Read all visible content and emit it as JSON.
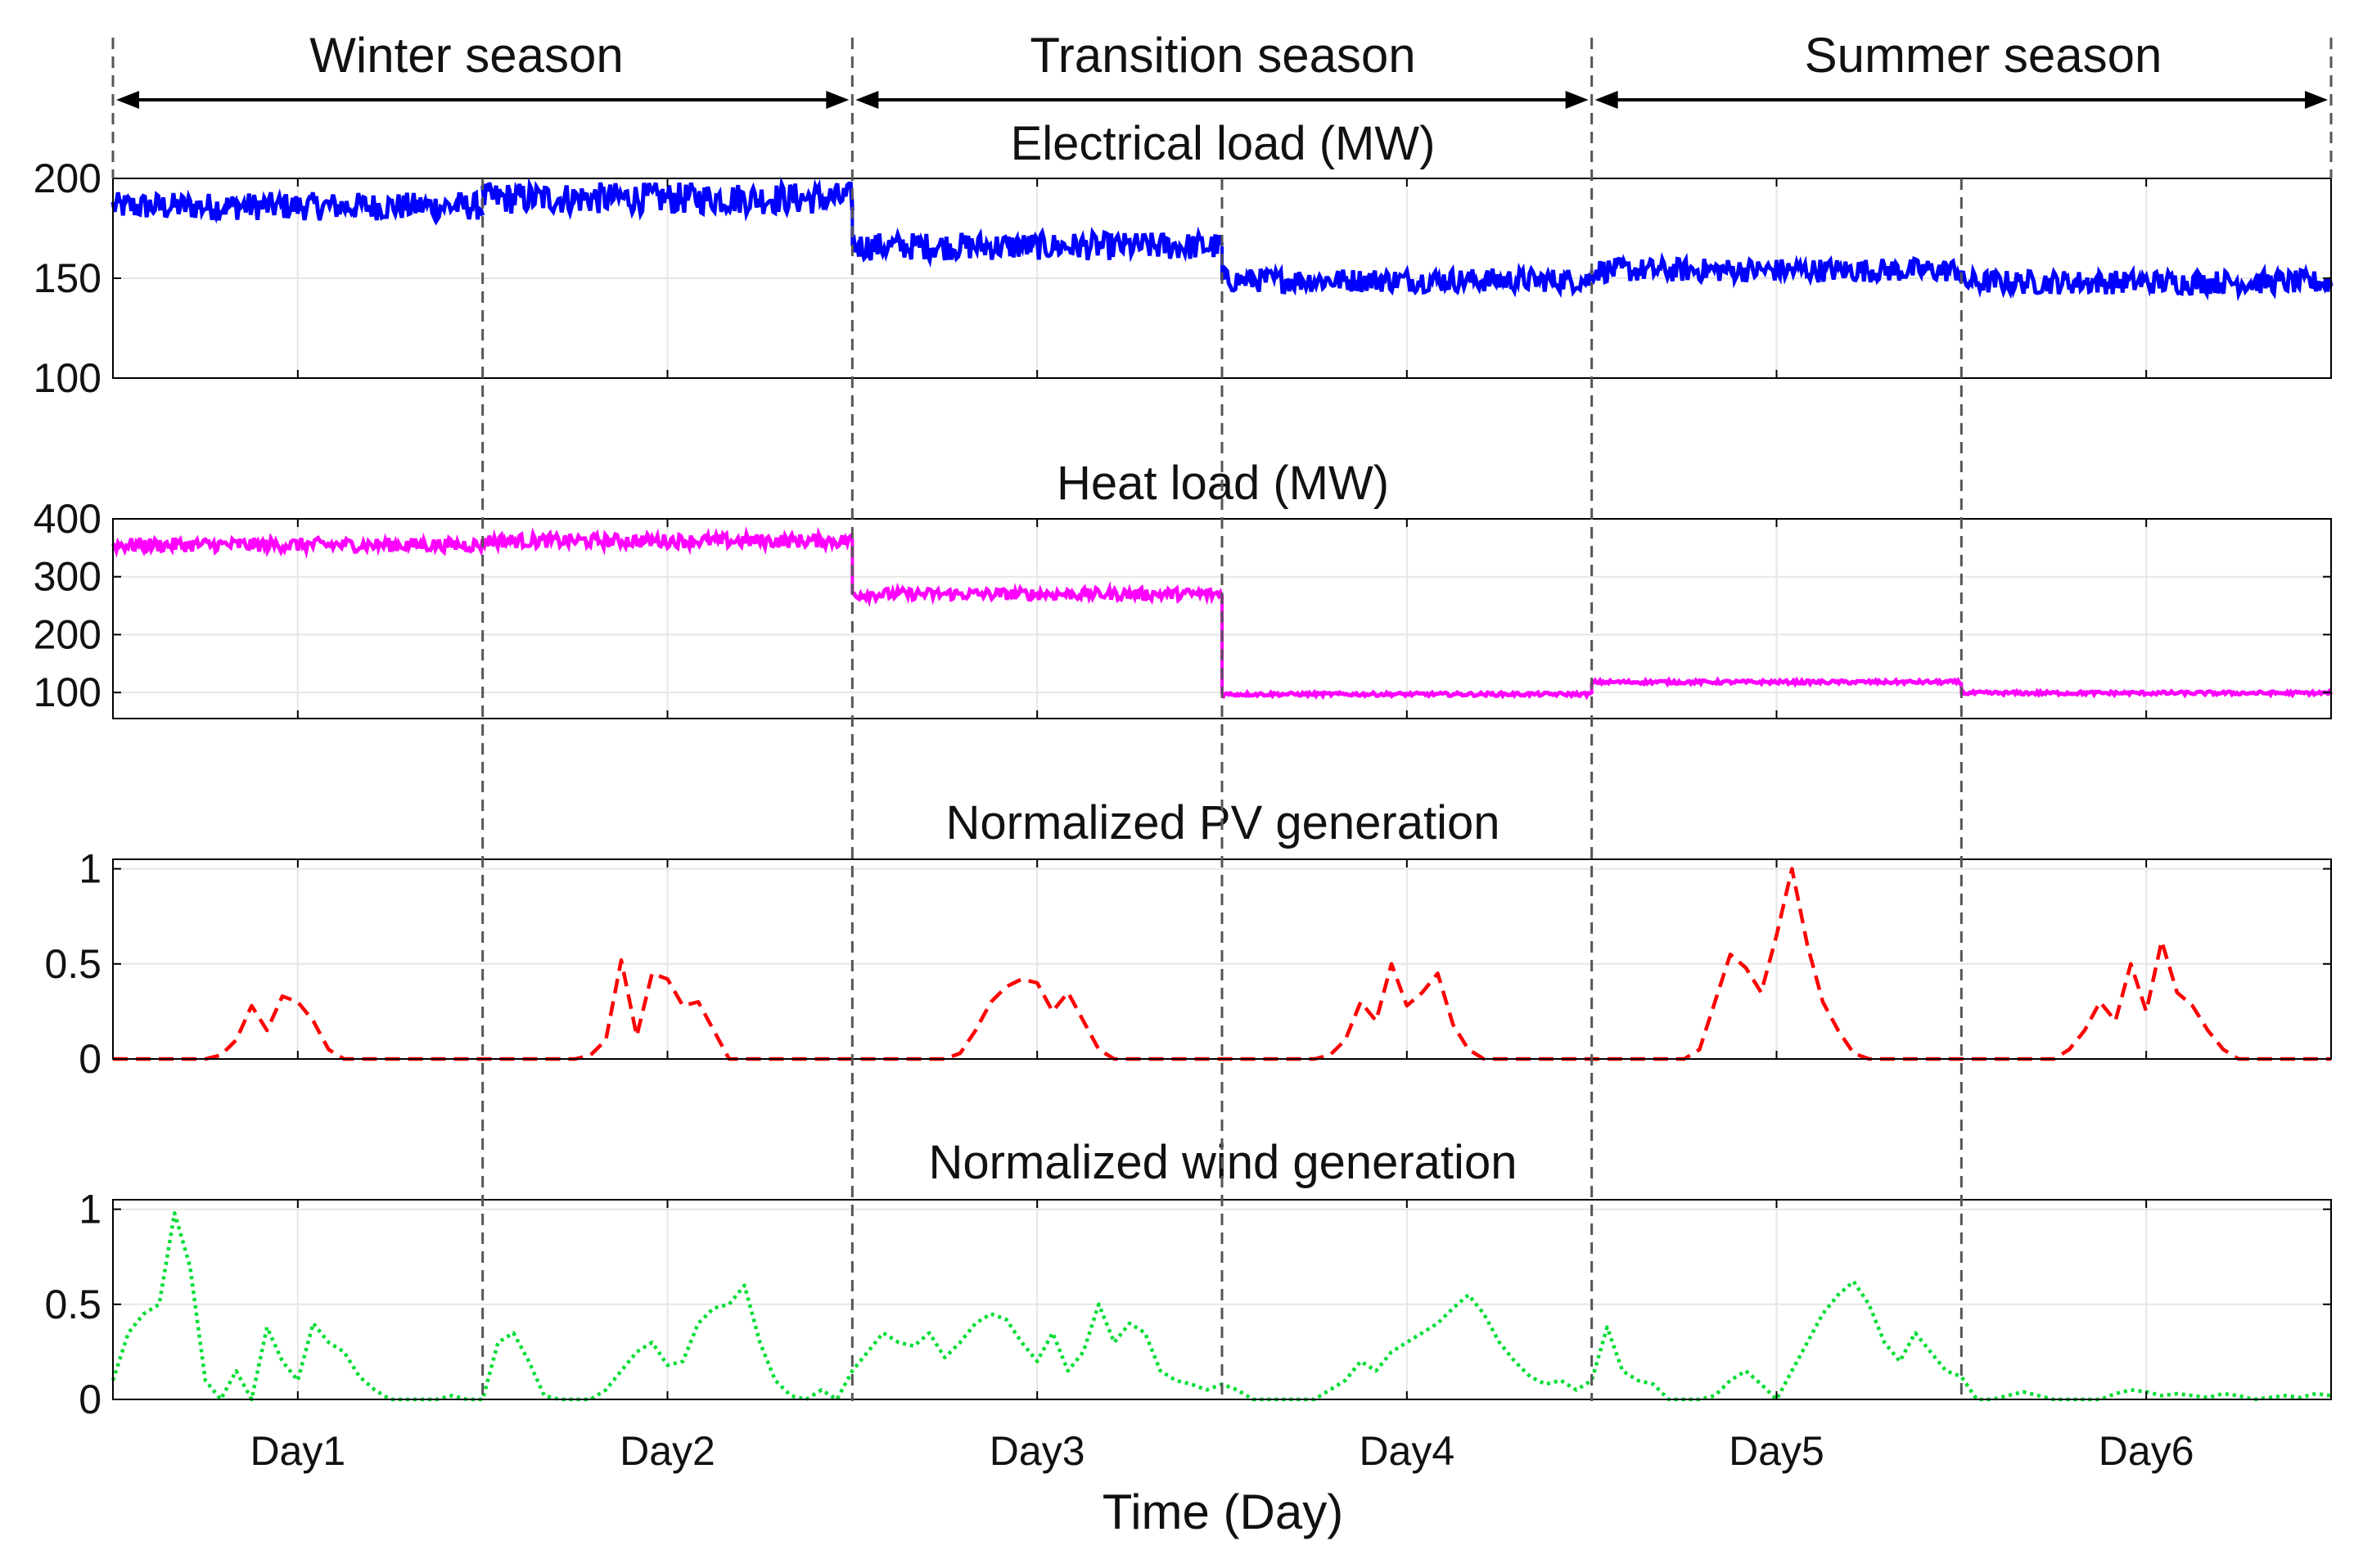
{
  "seasons": [
    {
      "label": "Winter season",
      "start_day": 0,
      "end_day": 2
    },
    {
      "label": "Transition season",
      "start_day": 2,
      "end_day": 4
    },
    {
      "label": "Summer season",
      "start_day": 4,
      "end_day": 6
    }
  ],
  "xaxis": {
    "label": "Time (Day)",
    "tick_labels": [
      "Day1",
      "Day2",
      "Day3",
      "Day4",
      "Day5",
      "Day6"
    ],
    "range_days": [
      0,
      6
    ]
  },
  "colors": {
    "electrical": "#0000ff",
    "heat": "#ff00ff",
    "pv": "#ff0000",
    "wind": "#00dd33",
    "divider": "#555555",
    "grid": "#e6e6e6",
    "axes": "#000000"
  },
  "chart_data": [
    {
      "type": "line",
      "title": "Electrical load (MW)",
      "xlabel": "Time (Day)",
      "ylabel": "",
      "ylim": [
        100,
        200
      ],
      "yticks": [
        100,
        150,
        200
      ],
      "grid": true,
      "line_style": "solid",
      "series": [
        {
          "name": "",
          "x": [
            1,
            2,
            3,
            4,
            5,
            6
          ],
          "values": [
            186,
            190,
            166,
            149,
            154,
            148
          ],
          "noise_band": [
            7,
            8,
            7,
            6,
            6,
            6
          ]
        }
      ]
    },
    {
      "type": "line",
      "title": "Heat load (MW)",
      "xlabel": "Time (Day)",
      "ylabel": "",
      "ylim": [
        55,
        400
      ],
      "yticks": [
        100,
        200,
        300,
        400
      ],
      "grid": true,
      "line_style": "solid",
      "series": [
        {
          "name": "",
          "x": [
            1,
            2,
            3,
            4,
            5,
            6
          ],
          "values": [
            355,
            362,
            270,
            97,
            118,
            99
          ],
          "noise_band": [
            12,
            12,
            10,
            3,
            3,
            3
          ]
        }
      ]
    },
    {
      "type": "line",
      "title": "Normalized PV generation",
      "xlabel": "Time (Day)",
      "ylabel": "",
      "ylim": [
        0,
        1.05
      ],
      "yticks": [
        0,
        0.5,
        1
      ],
      "grid": true,
      "line_style": "dashed",
      "series": [
        {
          "name": "",
          "x_hours": [
            0,
            6,
            7,
            8,
            9,
            10,
            11,
            12,
            13,
            14,
            15,
            16,
            17,
            24,
            30,
            31,
            32,
            33,
            34,
            35,
            36,
            37,
            38,
            39,
            40,
            41,
            48,
            54,
            55,
            56,
            57,
            58,
            59,
            60,
            61,
            62,
            63,
            64,
            65,
            72,
            78,
            79,
            80,
            81,
            82,
            83,
            84,
            85,
            86,
            87,
            88,
            89,
            96,
            102,
            103,
            104,
            105,
            106,
            107,
            108,
            109,
            110,
            111,
            112,
            113,
            114,
            120,
            126,
            127,
            128,
            129,
            130,
            131,
            132,
            133,
            134,
            135,
            136,
            137,
            138,
            144
          ],
          "values": [
            0,
            0,
            0.02,
            0.1,
            0.28,
            0.15,
            0.33,
            0.3,
            0.2,
            0.05,
            0,
            0,
            0,
            0,
            0,
            0.02,
            0.1,
            0.52,
            0.12,
            0.45,
            0.42,
            0.28,
            0.3,
            0.15,
            0,
            0,
            0,
            0,
            0.03,
            0.15,
            0.3,
            0.38,
            0.42,
            0.4,
            0.25,
            0.35,
            0.2,
            0.05,
            0,
            0,
            0,
            0.02,
            0.1,
            0.3,
            0.2,
            0.5,
            0.28,
            0.35,
            0.45,
            0.18,
            0.05,
            0,
            0,
            0,
            0.05,
            0.3,
            0.55,
            0.48,
            0.35,
            0.65,
            1.0,
            0.6,
            0.3,
            0.15,
            0.03,
            0,
            0,
            0,
            0.05,
            0.15,
            0.3,
            0.2,
            0.5,
            0.25,
            0.62,
            0.35,
            0.28,
            0.15,
            0.05,
            0,
            0
          ]
        }
      ]
    },
    {
      "type": "line",
      "title": "Normalized wind generation",
      "xlabel": "Time (Day)",
      "ylabel": "",
      "ylim": [
        0,
        1.05
      ],
      "yticks": [
        0,
        0.5,
        1
      ],
      "grid": true,
      "line_style": "dotted",
      "series": [
        {
          "name": "",
          "x_hours": [
            0,
            1,
            2,
            3,
            4,
            5,
            6,
            7,
            8,
            9,
            10,
            11,
            12,
            13,
            14,
            15,
            16,
            17,
            18,
            19,
            20,
            21,
            22,
            23,
            24,
            25,
            26,
            27,
            28,
            29,
            30,
            31,
            32,
            33,
            34,
            35,
            36,
            37,
            38,
            39,
            40,
            41,
            42,
            43,
            44,
            45,
            46,
            47,
            48,
            49,
            50,
            51,
            52,
            53,
            54,
            55,
            56,
            57,
            58,
            59,
            60,
            61,
            62,
            63,
            64,
            65,
            66,
            67,
            68,
            69,
            70,
            71,
            72,
            73,
            74,
            75,
            76,
            77,
            78,
            79,
            80,
            81,
            82,
            83,
            84,
            85,
            86,
            87,
            88,
            89,
            90,
            91,
            92,
            93,
            94,
            95,
            96,
            97,
            98,
            99,
            100,
            101,
            102,
            103,
            104,
            105,
            106,
            107,
            108,
            109,
            110,
            111,
            112,
            113,
            114,
            115,
            116,
            117,
            118,
            119,
            120,
            121,
            122,
            123,
            124,
            125,
            126,
            127,
            128,
            129,
            130,
            131,
            132,
            133,
            134,
            135,
            136,
            137,
            138,
            139,
            140,
            141,
            142,
            143,
            144
          ],
          "values": [
            0.1,
            0.35,
            0.45,
            0.5,
            0.98,
            0.7,
            0.1,
            0.0,
            0.15,
            0.0,
            0.38,
            0.2,
            0.1,
            0.4,
            0.3,
            0.25,
            0.12,
            0.05,
            0.0,
            0.0,
            0.0,
            0.0,
            0.02,
            0.0,
            0.0,
            0.3,
            0.35,
            0.2,
            0.02,
            0.0,
            0.0,
            0.0,
            0.05,
            0.15,
            0.25,
            0.3,
            0.18,
            0.2,
            0.4,
            0.48,
            0.5,
            0.6,
            0.3,
            0.1,
            0.02,
            0.0,
            0.05,
            0.0,
            0.15,
            0.25,
            0.35,
            0.3,
            0.28,
            0.35,
            0.22,
            0.3,
            0.4,
            0.45,
            0.42,
            0.3,
            0.2,
            0.35,
            0.15,
            0.25,
            0.5,
            0.3,
            0.4,
            0.35,
            0.15,
            0.1,
            0.08,
            0.05,
            0.08,
            0.05,
            0.0,
            0.0,
            0.0,
            0.0,
            0.0,
            0.05,
            0.1,
            0.2,
            0.15,
            0.25,
            0.3,
            0.35,
            0.4,
            0.48,
            0.55,
            0.45,
            0.3,
            0.2,
            0.12,
            0.08,
            0.1,
            0.05,
            0.1,
            0.38,
            0.15,
            0.1,
            0.08,
            0.0,
            0.0,
            0.0,
            0.02,
            0.1,
            0.15,
            0.08,
            0.0,
            0.15,
            0.3,
            0.45,
            0.55,
            0.62,
            0.5,
            0.3,
            0.2,
            0.35,
            0.25,
            0.15,
            0.12,
            0.0,
            0.0,
            0.02,
            0.04,
            0.02,
            0.0,
            0.0,
            0.0,
            0.0,
            0.03,
            0.05,
            0.04,
            0.02,
            0.03,
            0.02,
            0.01,
            0.03,
            0.02,
            0.0,
            0.01,
            0.02,
            0.01,
            0.03,
            0.02
          ]
        }
      ]
    }
  ]
}
